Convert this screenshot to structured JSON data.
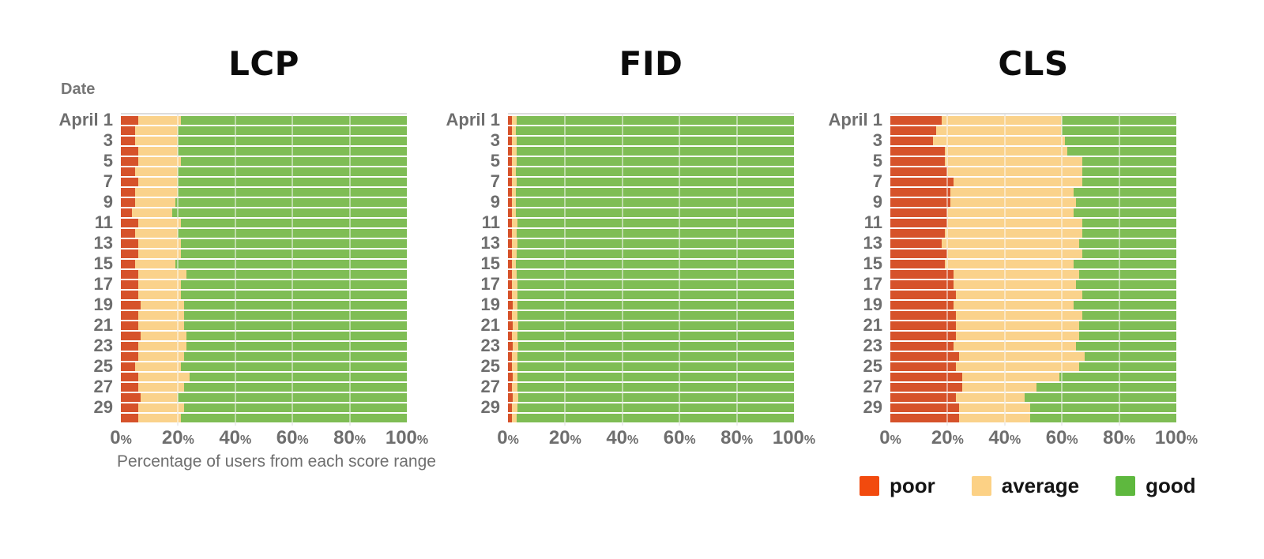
{
  "labels": {
    "date_header": "Date",
    "x_axis_title": "Percentage of users from each score range"
  },
  "colors": {
    "bar_poor": "#d6522a",
    "bar_average": "#fad28b",
    "bar_good": "#7fbd55",
    "legend_poor": "#f24a0e",
    "legend_average": "#fcd185",
    "legend_good": "#5eb83e",
    "title_text": "#0b0b0b",
    "axis_text": "#6e6e6e",
    "legend_text": "#141414"
  },
  "legend": {
    "items": [
      {
        "label": "poor",
        "key": "poor"
      },
      {
        "label": "average",
        "key": "average"
      },
      {
        "label": "good",
        "key": "good"
      }
    ]
  },
  "chart_data": [
    {
      "type": "bar",
      "orientation": "horizontal",
      "stacked": true,
      "title": "LCP",
      "xlim": [
        0,
        100
      ],
      "x_unit": "%",
      "grid": true,
      "x_ticks": [
        "0%",
        "20%",
        "40%",
        "60%",
        "80%",
        "100%"
      ],
      "y_tick_labels": [
        "April 1",
        "3",
        "5",
        "7",
        "9",
        "11",
        "13",
        "15",
        "17",
        "19",
        "21",
        "23",
        "25",
        "27",
        "29"
      ],
      "n_bars": 30,
      "series": [
        {
          "name": "poor",
          "values": [
            6,
            5,
            5,
            6,
            6,
            5,
            6,
            5,
            5,
            4,
            6,
            5,
            6,
            6,
            5,
            6,
            6,
            6,
            7,
            6,
            6,
            7,
            6,
            6,
            5,
            6,
            6,
            7,
            6,
            6
          ]
        },
        {
          "name": "average",
          "values": [
            15,
            15,
            15,
            14,
            15,
            15,
            14,
            15,
            14,
            14,
            15,
            15,
            15,
            15,
            14,
            17,
            15,
            15,
            15,
            16,
            16,
            16,
            17,
            16,
            16,
            18,
            16,
            13,
            16,
            15
          ]
        },
        {
          "name": "good",
          "values": [
            79,
            80,
            80,
            80,
            79,
            80,
            80,
            80,
            81,
            82,
            79,
            80,
            79,
            79,
            81,
            77,
            79,
            79,
            78,
            78,
            78,
            77,
            77,
            78,
            79,
            76,
            78,
            80,
            78,
            79
          ]
        }
      ]
    },
    {
      "type": "bar",
      "orientation": "horizontal",
      "stacked": true,
      "title": "FID",
      "xlim": [
        0,
        100
      ],
      "x_unit": "%",
      "grid": true,
      "x_ticks": [
        "0%",
        "20%",
        "40%",
        "60%",
        "80%",
        "100%"
      ],
      "y_tick_labels": [
        "April 1",
        "3",
        "5",
        "7",
        "9",
        "11",
        "13",
        "15",
        "17",
        "19",
        "21",
        "23",
        "25",
        "27",
        "29"
      ],
      "n_bars": 30,
      "series": [
        {
          "name": "poor",
          "values": [
            1.5,
            1.4,
            1.5,
            1.4,
            1.5,
            1.4,
            1.5,
            1.4,
            1.3,
            1.3,
            1.5,
            1.4,
            1.5,
            1.4,
            1.4,
            1.5,
            1.5,
            1.5,
            1.6,
            1.5,
            1.6,
            1.5,
            1.6,
            1.5,
            1.5,
            1.6,
            1.5,
            1.6,
            1.5,
            1.4
          ]
        },
        {
          "name": "average",
          "values": [
            1.5,
            1.4,
            1.5,
            1.6,
            1.5,
            1.4,
            1.5,
            1.5,
            1.5,
            1.4,
            1.7,
            1.6,
            1.8,
            1.6,
            1.5,
            1.6,
            1.8,
            1.7,
            1.8,
            1.7,
            2.0,
            1.8,
            2.0,
            1.8,
            1.9,
            1.8,
            1.7,
            1.9,
            1.8,
            1.7
          ]
        },
        {
          "name": "good",
          "values": [
            97.0,
            97.2,
            97.0,
            97.0,
            97.0,
            97.2,
            97.0,
            97.1,
            97.2,
            97.3,
            96.8,
            97.0,
            96.7,
            97.0,
            97.1,
            96.9,
            96.7,
            96.8,
            96.6,
            96.8,
            96.4,
            96.7,
            96.4,
            96.7,
            96.6,
            96.6,
            96.8,
            96.5,
            96.7,
            96.9
          ]
        }
      ]
    },
    {
      "type": "bar",
      "orientation": "horizontal",
      "stacked": true,
      "title": "CLS",
      "xlim": [
        0,
        100
      ],
      "x_unit": "%",
      "grid": true,
      "x_ticks": [
        "0%",
        "20%",
        "40%",
        "60%",
        "80%",
        "100%"
      ],
      "y_tick_labels": [
        "April 1",
        "3",
        "5",
        "7",
        "9",
        "11",
        "13",
        "15",
        "17",
        "19",
        "21",
        "23",
        "25",
        "27",
        "29"
      ],
      "n_bars": 30,
      "series": [
        {
          "name": "poor",
          "values": [
            18,
            16,
            15,
            19,
            19,
            20,
            22,
            21,
            21,
            20,
            20,
            19,
            18,
            20,
            19,
            22,
            22,
            23,
            22,
            23,
            23,
            23,
            22,
            24,
            23,
            25,
            25,
            23,
            24,
            24
          ]
        },
        {
          "name": "average",
          "values": [
            42,
            44,
            46,
            43,
            48,
            47,
            45,
            43,
            44,
            44,
            47,
            48,
            48,
            47,
            45,
            44,
            43,
            44,
            42,
            44,
            43,
            43,
            43,
            44,
            43,
            34,
            26,
            24,
            25,
            25
          ]
        },
        {
          "name": "good",
          "values": [
            40,
            40,
            39,
            38,
            33,
            33,
            33,
            36,
            35,
            36,
            33,
            33,
            34,
            33,
            36,
            34,
            35,
            33,
            36,
            33,
            34,
            34,
            35,
            32,
            34,
            41,
            49,
            53,
            51,
            51
          ]
        }
      ]
    }
  ]
}
